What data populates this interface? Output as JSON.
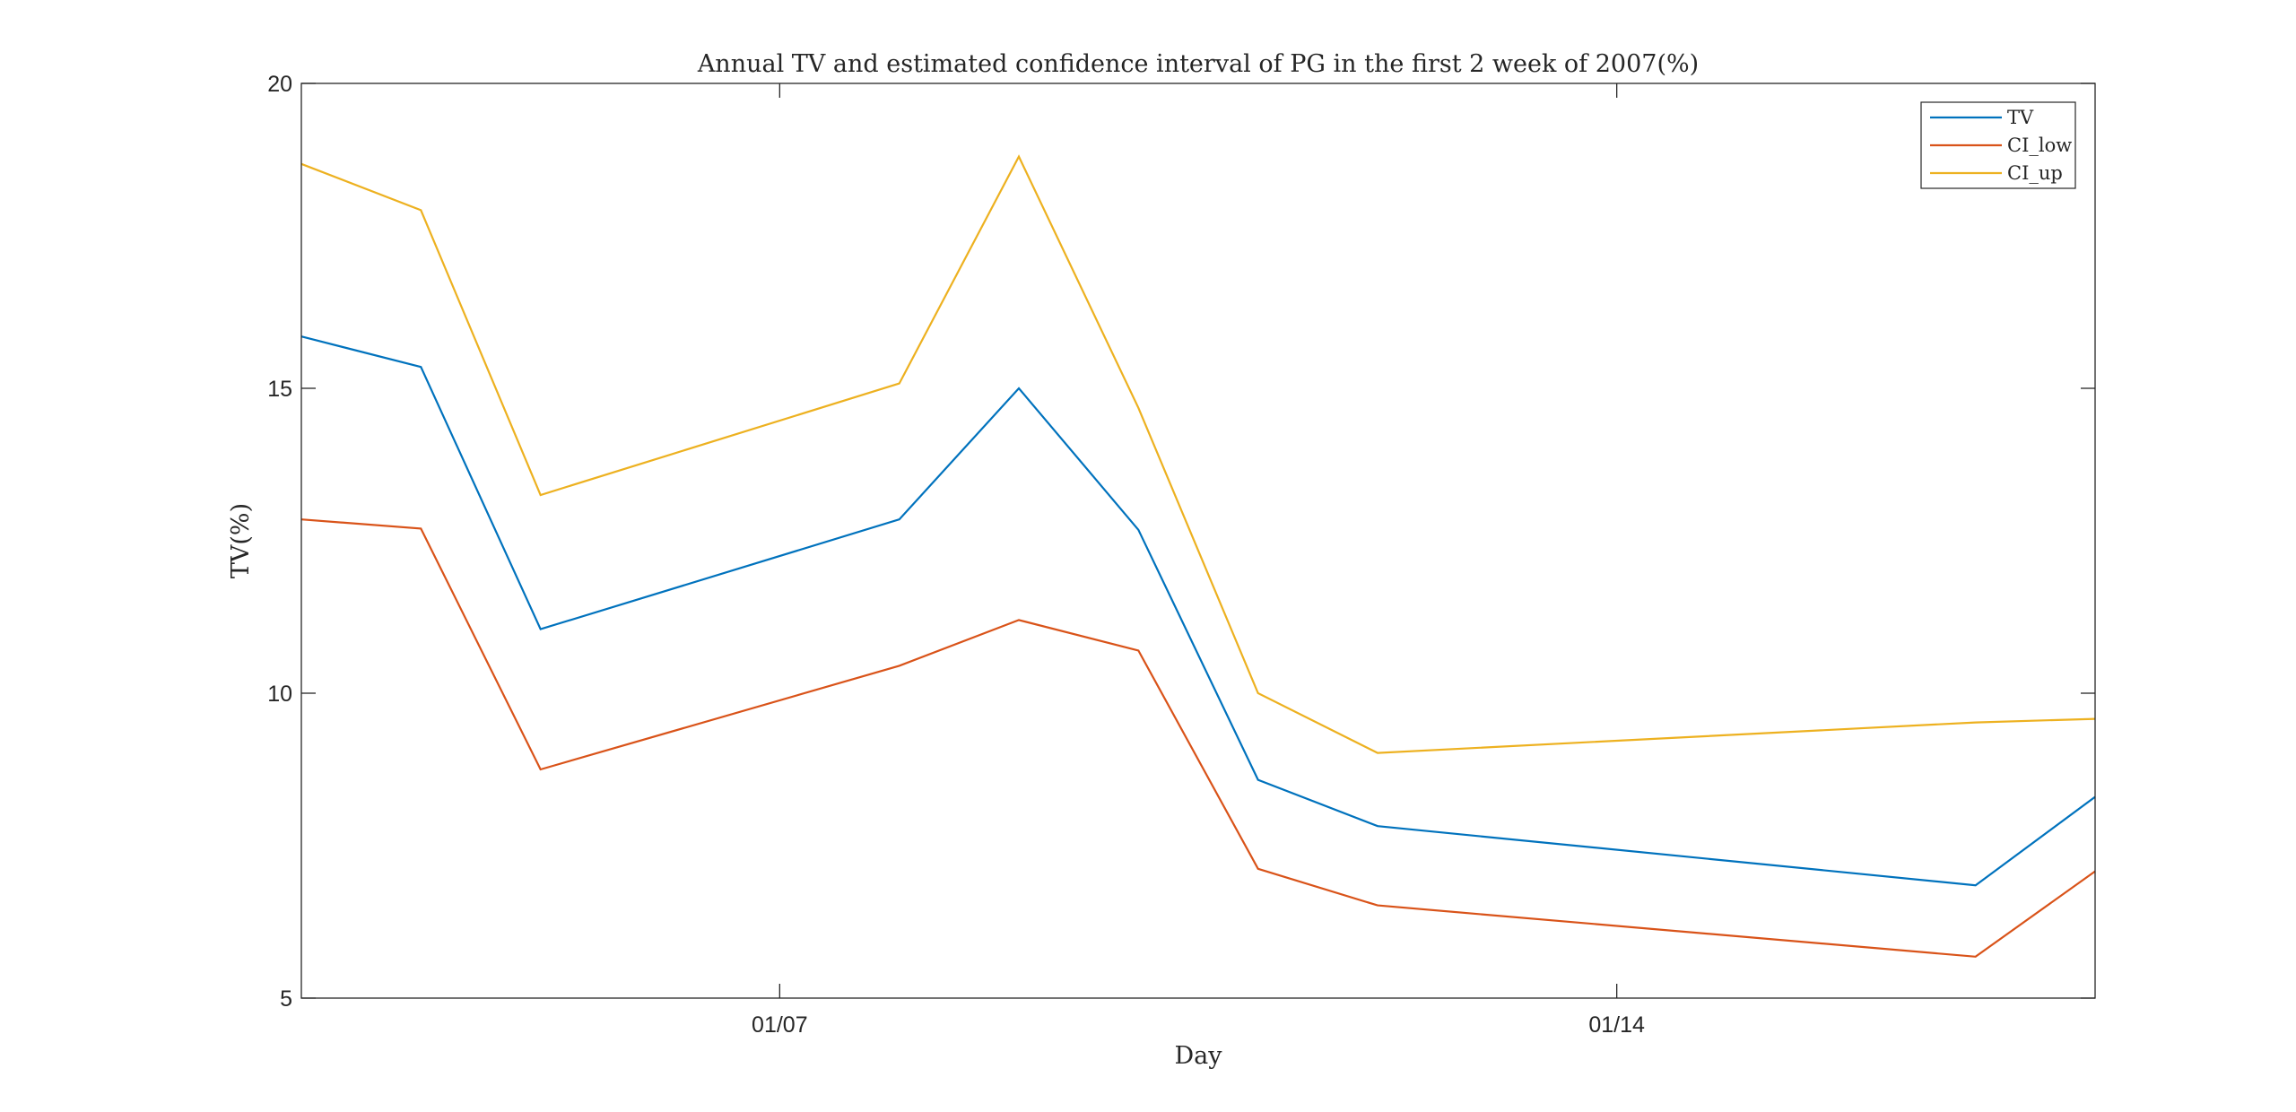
{
  "chart_data": {
    "type": "line",
    "title": "Annual TV and estimated confidence interval of PG in the first 2 week of 2007(%)",
    "xlabel": "Day",
    "ylabel": "TV(%)",
    "x": [
      3,
      4,
      5,
      8,
      9,
      10,
      11,
      12,
      17,
      18
    ],
    "xlim": [
      3,
      18
    ],
    "x_ticks": [
      7,
      14
    ],
    "x_tick_labels": [
      "01/07",
      "01/14"
    ],
    "ylim": [
      5,
      20
    ],
    "y_ticks": [
      5,
      10,
      15,
      20
    ],
    "y_tick_labels": [
      "5",
      "10",
      "15",
      "20"
    ],
    "grid": false,
    "legend_location": "top-right",
    "series": [
      {
        "name": "TV",
        "color": "#0072BD",
        "values": [
          15.85,
          15.35,
          11.05,
          12.85,
          15.0,
          12.68,
          8.58,
          7.82,
          6.85,
          8.3
        ]
      },
      {
        "name": "CI_low",
        "color": "#D95319",
        "values": [
          12.85,
          12.7,
          8.75,
          10.45,
          11.2,
          10.7,
          7.12,
          6.52,
          5.68,
          7.08
        ]
      },
      {
        "name": "CI_up",
        "color": "#EDB120",
        "values": [
          18.68,
          17.92,
          13.25,
          15.08,
          18.8,
          14.68,
          10.0,
          9.02,
          9.52,
          9.58
        ]
      }
    ]
  }
}
